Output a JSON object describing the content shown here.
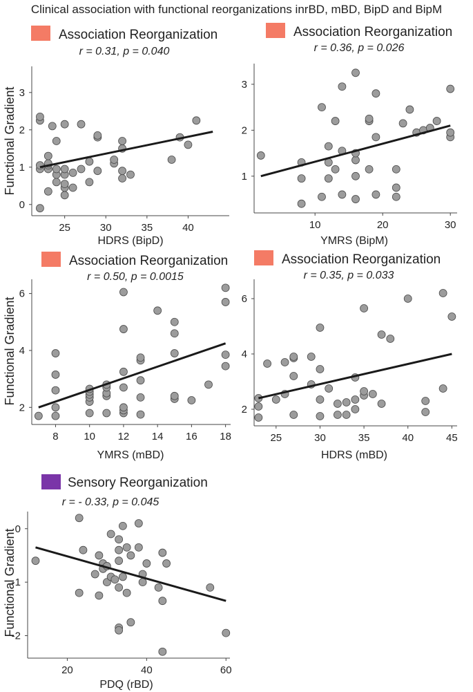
{
  "title": "Clinical association with functional reorganizations inrBD, mBD, BipD and BipM",
  "colors": {
    "association": "#f47b65",
    "sensory": "#7a35a8",
    "point": "#9c9c9c",
    "line": "#1a1a1a"
  },
  "chart_data": [
    {
      "type": "scatter",
      "legend": "Association Reorganization",
      "stat": "r = 0.31, p = 0.040",
      "xlabel": "HDRS (BipD)",
      "ylabel": "Functional Gradient",
      "xlim": [
        21,
        45
      ],
      "ylim": [
        -0.3,
        3.7
      ],
      "xticks": [
        25,
        30,
        35,
        40
      ],
      "yticks": [
        0,
        1,
        2,
        3
      ],
      "fit": [
        [
          22,
          1.0
        ],
        [
          43,
          1.95
        ]
      ],
      "points": [
        [
          22,
          -0.1
        ],
        [
          22,
          0.95
        ],
        [
          22,
          1.05
        ],
        [
          22,
          2.25
        ],
        [
          22,
          2.35
        ],
        [
          23,
          0.35
        ],
        [
          23,
          0.95
        ],
        [
          23,
          1.05
        ],
        [
          23,
          1.1
        ],
        [
          23,
          1.3
        ],
        [
          23.5,
          2.1
        ],
        [
          24,
          0.6
        ],
        [
          24,
          0.8
        ],
        [
          24,
          0.95
        ],
        [
          24,
          1.7
        ],
        [
          25,
          0.25
        ],
        [
          25,
          0.45
        ],
        [
          25,
          0.55
        ],
        [
          25,
          0.8
        ],
        [
          25,
          0.95
        ],
        [
          25,
          2.15
        ],
        [
          26,
          0.45
        ],
        [
          26,
          0.85
        ],
        [
          27,
          0.95
        ],
        [
          27,
          2.15
        ],
        [
          28,
          0.6
        ],
        [
          28,
          1.15
        ],
        [
          29,
          0.9
        ],
        [
          29,
          1.8
        ],
        [
          29,
          1.85
        ],
        [
          31,
          1.1
        ],
        [
          31,
          1.2
        ],
        [
          32,
          0.7
        ],
        [
          32,
          0.9
        ],
        [
          32,
          1.5
        ],
        [
          32,
          1.7
        ],
        [
          33,
          0.8
        ],
        [
          38,
          1.2
        ],
        [
          39,
          1.8
        ],
        [
          40,
          1.6
        ],
        [
          41,
          2.25
        ]
      ]
    },
    {
      "type": "scatter",
      "legend": "Association Reorganization",
      "stat": "r = 0.36, p = 0.026",
      "xlabel": "YMRS  (BipM)",
      "ylabel": "",
      "xlim": [
        1,
        31
      ],
      "ylim": [
        0.2,
        3.45
      ],
      "xticks": [
        10,
        20,
        30
      ],
      "yticks": [
        1,
        2,
        3
      ],
      "fit": [
        [
          2,
          1.0
        ],
        [
          30,
          2.1
        ]
      ],
      "points": [
        [
          2,
          1.45
        ],
        [
          8,
          0.4
        ],
        [
          8,
          0.95
        ],
        [
          8,
          1.3
        ],
        [
          11,
          0.55
        ],
        [
          11,
          2.5
        ],
        [
          12,
          0.95
        ],
        [
          12,
          1.3
        ],
        [
          12,
          1.65
        ],
        [
          13,
          1.15
        ],
        [
          13,
          2.2
        ],
        [
          14,
          0.6
        ],
        [
          14,
          1.55
        ],
        [
          14,
          2.95
        ],
        [
          16,
          0.5
        ],
        [
          16,
          1.0
        ],
        [
          16,
          1.35
        ],
        [
          16,
          1.5
        ],
        [
          16,
          3.25
        ],
        [
          18,
          1.15
        ],
        [
          18,
          2.2
        ],
        [
          18,
          2.25
        ],
        [
          19,
          0.6
        ],
        [
          19,
          1.85
        ],
        [
          19,
          2.8
        ],
        [
          22,
          0.55
        ],
        [
          22,
          0.75
        ],
        [
          22,
          1.15
        ],
        [
          23,
          2.15
        ],
        [
          24,
          2.45
        ],
        [
          25,
          1.95
        ],
        [
          26,
          2.0
        ],
        [
          27,
          2.05
        ],
        [
          28,
          2.2
        ],
        [
          30,
          1.85
        ],
        [
          30,
          1.95
        ],
        [
          30,
          2.9
        ]
      ]
    },
    {
      "type": "scatter",
      "legend": "Association Reorganization",
      "stat": "r = 0.50, p = 0.0015",
      "xlabel": "YMRS (mBD)",
      "ylabel": "Functional Gradient",
      "xlim": [
        6.6,
        18.3
      ],
      "ylim": [
        1.4,
        6.5
      ],
      "xticks": [
        8,
        10,
        12,
        14,
        16,
        18
      ],
      "yticks": [
        2,
        4,
        6
      ],
      "fit": [
        [
          7,
          2.0
        ],
        [
          18,
          4.25
        ]
      ],
      "points": [
        [
          7,
          1.7
        ],
        [
          8,
          1.7
        ],
        [
          8,
          2.0
        ],
        [
          8,
          2.6
        ],
        [
          8,
          3.15
        ],
        [
          8,
          3.9
        ],
        [
          10,
          1.8
        ],
        [
          10,
          2.2
        ],
        [
          10,
          2.35
        ],
        [
          10,
          2.45
        ],
        [
          10,
          2.55
        ],
        [
          10,
          2.65
        ],
        [
          11,
          1.8
        ],
        [
          11,
          2.4
        ],
        [
          11,
          2.5
        ],
        [
          11,
          2.7
        ],
        [
          11,
          2.8
        ],
        [
          12,
          1.8
        ],
        [
          12,
          1.9
        ],
        [
          12,
          2.0
        ],
        [
          12,
          2.7
        ],
        [
          12,
          3.25
        ],
        [
          12,
          4.75
        ],
        [
          12,
          6.05
        ],
        [
          13,
          1.75
        ],
        [
          13,
          2.35
        ],
        [
          13,
          2.95
        ],
        [
          13,
          3.65
        ],
        [
          13,
          3.75
        ],
        [
          14,
          5.4
        ],
        [
          15,
          2.3
        ],
        [
          15,
          2.4
        ],
        [
          15,
          3.9
        ],
        [
          15,
          4.6
        ],
        [
          15,
          5.0
        ],
        [
          16,
          2.25
        ],
        [
          17,
          2.8
        ],
        [
          18,
          3.45
        ],
        [
          18,
          3.85
        ],
        [
          18,
          5.7
        ],
        [
          18,
          6.2
        ]
      ]
    },
    {
      "type": "scatter",
      "legend": "Association Reorganization",
      "stat": "r = 0.35, p = 0.033",
      "xlabel": "HDRS (mBD)",
      "ylabel": "",
      "xlim": [
        22.5,
        45.6
      ],
      "ylim": [
        1.4,
        6.7
      ],
      "xticks": [
        25,
        30,
        35,
        40,
        45
      ],
      "yticks": [
        2,
        4,
        6
      ],
      "fit": [
        [
          23,
          2.4
        ],
        [
          45,
          4.0
        ]
      ],
      "points": [
        [
          23,
          1.7
        ],
        [
          23,
          2.1
        ],
        [
          23,
          2.4
        ],
        [
          24,
          3.65
        ],
        [
          25,
          2.35
        ],
        [
          26,
          2.55
        ],
        [
          26,
          3.7
        ],
        [
          27,
          1.8
        ],
        [
          27,
          3.2
        ],
        [
          27,
          3.85
        ],
        [
          27,
          3.9
        ],
        [
          29,
          2.9
        ],
        [
          29,
          3.9
        ],
        [
          30,
          1.75
        ],
        [
          30,
          2.35
        ],
        [
          30,
          3.45
        ],
        [
          30,
          4.95
        ],
        [
          31,
          2.75
        ],
        [
          32,
          1.8
        ],
        [
          32,
          2.2
        ],
        [
          33,
          1.8
        ],
        [
          33,
          2.25
        ],
        [
          34,
          2.0
        ],
        [
          34,
          2.35
        ],
        [
          34,
          3.15
        ],
        [
          35,
          2.5
        ],
        [
          35,
          2.65
        ],
        [
          35,
          5.65
        ],
        [
          36,
          2.55
        ],
        [
          37,
          2.2
        ],
        [
          37,
          4.7
        ],
        [
          38,
          4.55
        ],
        [
          40,
          6.0
        ],
        [
          42,
          1.9
        ],
        [
          42,
          2.3
        ],
        [
          44,
          2.75
        ],
        [
          44,
          6.2
        ],
        [
          45,
          5.35
        ]
      ]
    },
    {
      "type": "scatter",
      "legend": "Sensory Reorganization",
      "stat": "r = - 0.33, p = 0.045",
      "xlabel": "PDQ (rBD)",
      "ylabel": "Functional Gradient",
      "xlim": [
        10,
        61
      ],
      "ylim": [
        -2.42,
        0.32
      ],
      "xticks": [
        20,
        40,
        60
      ],
      "yticks": [
        -2,
        -1,
        0
      ],
      "fit": [
        [
          12,
          -0.35
        ],
        [
          60,
          -1.35
        ]
      ],
      "points": [
        [
          12,
          -0.6
        ],
        [
          23,
          0.2
        ],
        [
          23,
          -1.2
        ],
        [
          24,
          -0.4
        ],
        [
          27,
          -0.85
        ],
        [
          28,
          -0.5
        ],
        [
          28,
          -1.25
        ],
        [
          29,
          -0.65
        ],
        [
          29,
          -0.75
        ],
        [
          30,
          -0.7
        ],
        [
          30,
          -1.0
        ],
        [
          31,
          -0.1
        ],
        [
          31,
          -0.9
        ],
        [
          32,
          -0.95
        ],
        [
          33,
          -0.2
        ],
        [
          33,
          -0.4
        ],
        [
          33,
          -0.6
        ],
        [
          33,
          -1.1
        ],
        [
          33,
          -1.85
        ],
        [
          33,
          -1.9
        ],
        [
          34,
          0.05
        ],
        [
          34,
          -0.9
        ],
        [
          35,
          -0.35
        ],
        [
          35,
          -1.2
        ],
        [
          36,
          -0.5
        ],
        [
          36,
          -1.75
        ],
        [
          38,
          0.1
        ],
        [
          38,
          -0.35
        ],
        [
          39,
          -0.85
        ],
        [
          39,
          -1.0
        ],
        [
          40,
          -0.65
        ],
        [
          43,
          -1.1
        ],
        [
          44,
          -0.45
        ],
        [
          44,
          -1.35
        ],
        [
          44,
          -2.3
        ],
        [
          45,
          -0.65
        ],
        [
          56,
          -1.1
        ],
        [
          60,
          -1.95
        ]
      ]
    }
  ]
}
